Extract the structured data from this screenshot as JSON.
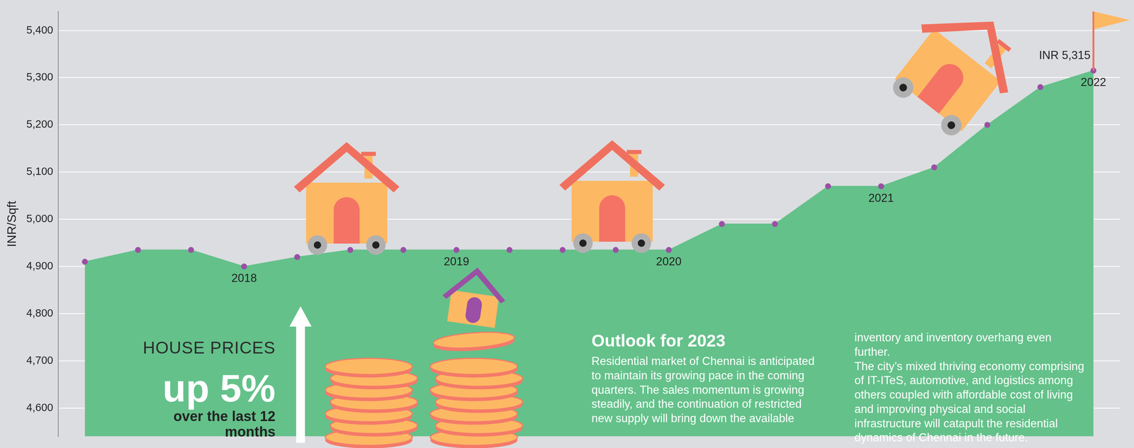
{
  "chart_data": {
    "type": "line",
    "categories": [
      null,
      null,
      null,
      "2018",
      null,
      null,
      null,
      "2019",
      null,
      null,
      null,
      "2020",
      null,
      null,
      null,
      "2021",
      null,
      null,
      null,
      "2022"
    ],
    "values": [
      4910,
      4935,
      4935,
      4900,
      4920,
      4935,
      4935,
      4935,
      4935,
      4935,
      4935,
      4935,
      4990,
      4990,
      5070,
      5070,
      5110,
      5200,
      5280,
      5315
    ],
    "color": "#64c18a",
    "marker": "circle",
    "y_label": "INR/Sqft",
    "ylim": [
      4540,
      5440
    ],
    "yticks": [
      {
        "value": 4600,
        "label": "4,600"
      },
      {
        "value": 4700,
        "label": "4,700"
      },
      {
        "value": 4800,
        "label": "4,800"
      },
      {
        "value": 4900,
        "label": "4,900"
      },
      {
        "value": 5000,
        "label": "5,000"
      },
      {
        "value": 5100,
        "label": "5,100"
      },
      {
        "value": 5200,
        "label": "5,200"
      },
      {
        "value": 5300,
        "label": "5,300"
      },
      {
        "value": 5400,
        "label": "5,400"
      }
    ],
    "grid": true,
    "annotations": [
      {
        "text": "INR 5,315",
        "x": 19,
        "y": 5315
      }
    ]
  },
  "infographic_text": {
    "headline": "HOUSE PRICES",
    "highlight": "up 5%",
    "subhead": "over the last 12 months",
    "outlook_title": "Outlook for 2023",
    "outlook_paragraphs": [
      "Residential market of Chennai is anticipated to maintain its growing pace in the coming quarters. The sales momentum is growing steadily, and the continuation of restricted new supply will bring down the available inventory and inventory overhang even further.",
      "The city’s mixed thriving economy comprising of IT-ITeS, automotive, and logistics among others coupled with affordable cost of living and improving physical and social infrastructure will catapult the residential dynamics of Chennai in the future."
    ]
  }
}
